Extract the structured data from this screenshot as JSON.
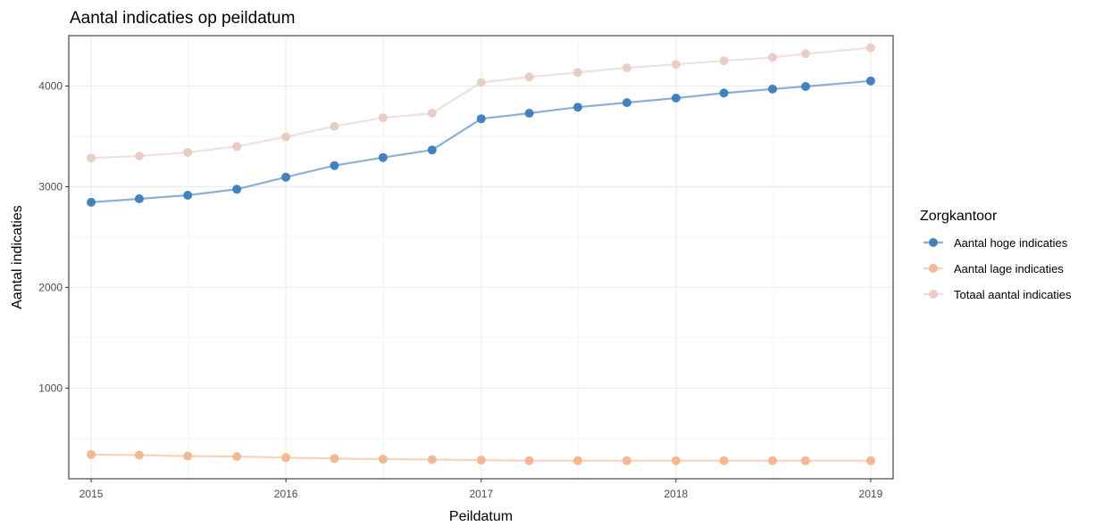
{
  "chart_data": {
    "type": "line",
    "title": "Aantal indicaties op peildatum",
    "xlabel": "Peildatum",
    "ylabel": "Aantal indicaties",
    "x": [
      "2015-01-01",
      "2015-04-01",
      "2015-07-01",
      "2015-10-01",
      "2016-01-01",
      "2016-04-01",
      "2016-07-01",
      "2016-10-01",
      "2017-01-01",
      "2017-04-01",
      "2017-07-01",
      "2017-10-01",
      "2018-01-01",
      "2018-04-01",
      "2018-07-01",
      "2018-09-01",
      "2019-01-01"
    ],
    "x_ticks": [
      "2015",
      "2016",
      "2017",
      "2018",
      "2019"
    ],
    "y_ticks": [
      "1000",
      "2000",
      "3000",
      "4000"
    ],
    "ylim": [
      100,
      4500
    ],
    "grid": true,
    "legend": {
      "title": "Zorgkantoor",
      "placement": "right"
    },
    "series": [
      {
        "name": "Aantal hoge indicaties",
        "color": "#3c7bbb",
        "values": [
          2845,
          2880,
          2915,
          2975,
          3095,
          3210,
          3290,
          3365,
          3675,
          3730,
          3790,
          3835,
          3880,
          3930,
          3970,
          3995,
          4050
        ]
      },
      {
        "name": "Aantal lage indicaties",
        "color": "#f4b48e",
        "values": [
          340,
          335,
          325,
          320,
          310,
          300,
          295,
          290,
          285,
          280,
          280,
          280,
          280,
          280,
          280,
          280,
          280
        ]
      },
      {
        "name": "Totaal aantal indicaties",
        "color": "#e8cbc3",
        "values": [
          3285,
          3305,
          3340,
          3400,
          3495,
          3600,
          3685,
          3730,
          4035,
          4090,
          4135,
          4180,
          4215,
          4250,
          4285,
          4320,
          4380
        ]
      }
    ]
  }
}
